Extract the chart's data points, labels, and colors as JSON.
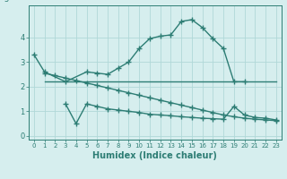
{
  "line1_x": [
    0,
    1,
    3,
    5,
    6,
    7,
    8,
    9,
    10,
    11,
    12,
    13,
    14,
    15,
    16,
    17,
    18,
    19,
    20
  ],
  "line1_y": [
    3.3,
    2.6,
    2.2,
    2.6,
    2.55,
    2.5,
    2.75,
    3.0,
    3.55,
    3.95,
    4.05,
    4.1,
    4.65,
    4.72,
    4.4,
    3.95,
    3.55,
    2.2,
    2.2
  ],
  "line2_x": [
    1,
    2,
    3,
    4,
    5,
    6,
    7,
    8,
    9,
    10,
    11,
    12,
    13,
    14,
    15,
    16,
    17,
    18,
    19,
    20,
    21,
    22,
    23
  ],
  "line2_y": [
    2.2,
    2.2,
    2.2,
    2.2,
    2.2,
    2.2,
    2.2,
    2.2,
    2.2,
    2.2,
    2.2,
    2.2,
    2.2,
    2.2,
    2.2,
    2.2,
    2.2,
    2.2,
    2.2,
    2.2,
    2.2,
    2.2,
    2.2
  ],
  "line3_x": [
    1,
    2,
    3,
    4,
    5,
    6,
    7,
    8,
    9,
    10,
    11,
    12,
    13,
    14,
    15,
    16,
    17,
    18,
    19,
    20,
    21,
    22,
    23
  ],
  "line3_y": [
    2.55,
    2.45,
    2.35,
    2.25,
    2.15,
    2.05,
    1.95,
    1.85,
    1.75,
    1.65,
    1.55,
    1.45,
    1.35,
    1.25,
    1.15,
    1.05,
    0.95,
    0.85,
    0.78,
    0.72,
    0.68,
    0.65,
    0.62
  ],
  "line4_x": [
    3,
    4,
    5,
    6,
    7,
    8,
    9,
    10,
    11,
    12,
    13,
    14,
    15,
    16,
    17,
    18,
    19,
    20,
    21,
    22,
    23
  ],
  "line4_y": [
    1.3,
    0.5,
    1.3,
    1.2,
    1.1,
    1.05,
    1.0,
    0.95,
    0.88,
    0.85,
    0.82,
    0.78,
    0.75,
    0.72,
    0.7,
    0.68,
    1.2,
    0.85,
    0.75,
    0.72,
    0.65
  ],
  "color": "#2d7d74",
  "bg_color": "#d6eeee",
  "grid_color": "#b0d8d8",
  "xlabel": "Humidex (Indice chaleur)",
  "xlim": [
    -0.5,
    23.5
  ],
  "ylim": [
    -0.15,
    5.3
  ],
  "yticks": [
    0,
    1,
    2,
    3,
    4
  ],
  "xticks": [
    0,
    1,
    2,
    3,
    4,
    5,
    6,
    7,
    8,
    9,
    10,
    11,
    12,
    13,
    14,
    15,
    16,
    17,
    18,
    19,
    20,
    21,
    22,
    23
  ],
  "marker": "+",
  "markersize": 4,
  "linewidth": 1.0,
  "xlabel_fontsize": 7,
  "tick_fontsize": 5
}
